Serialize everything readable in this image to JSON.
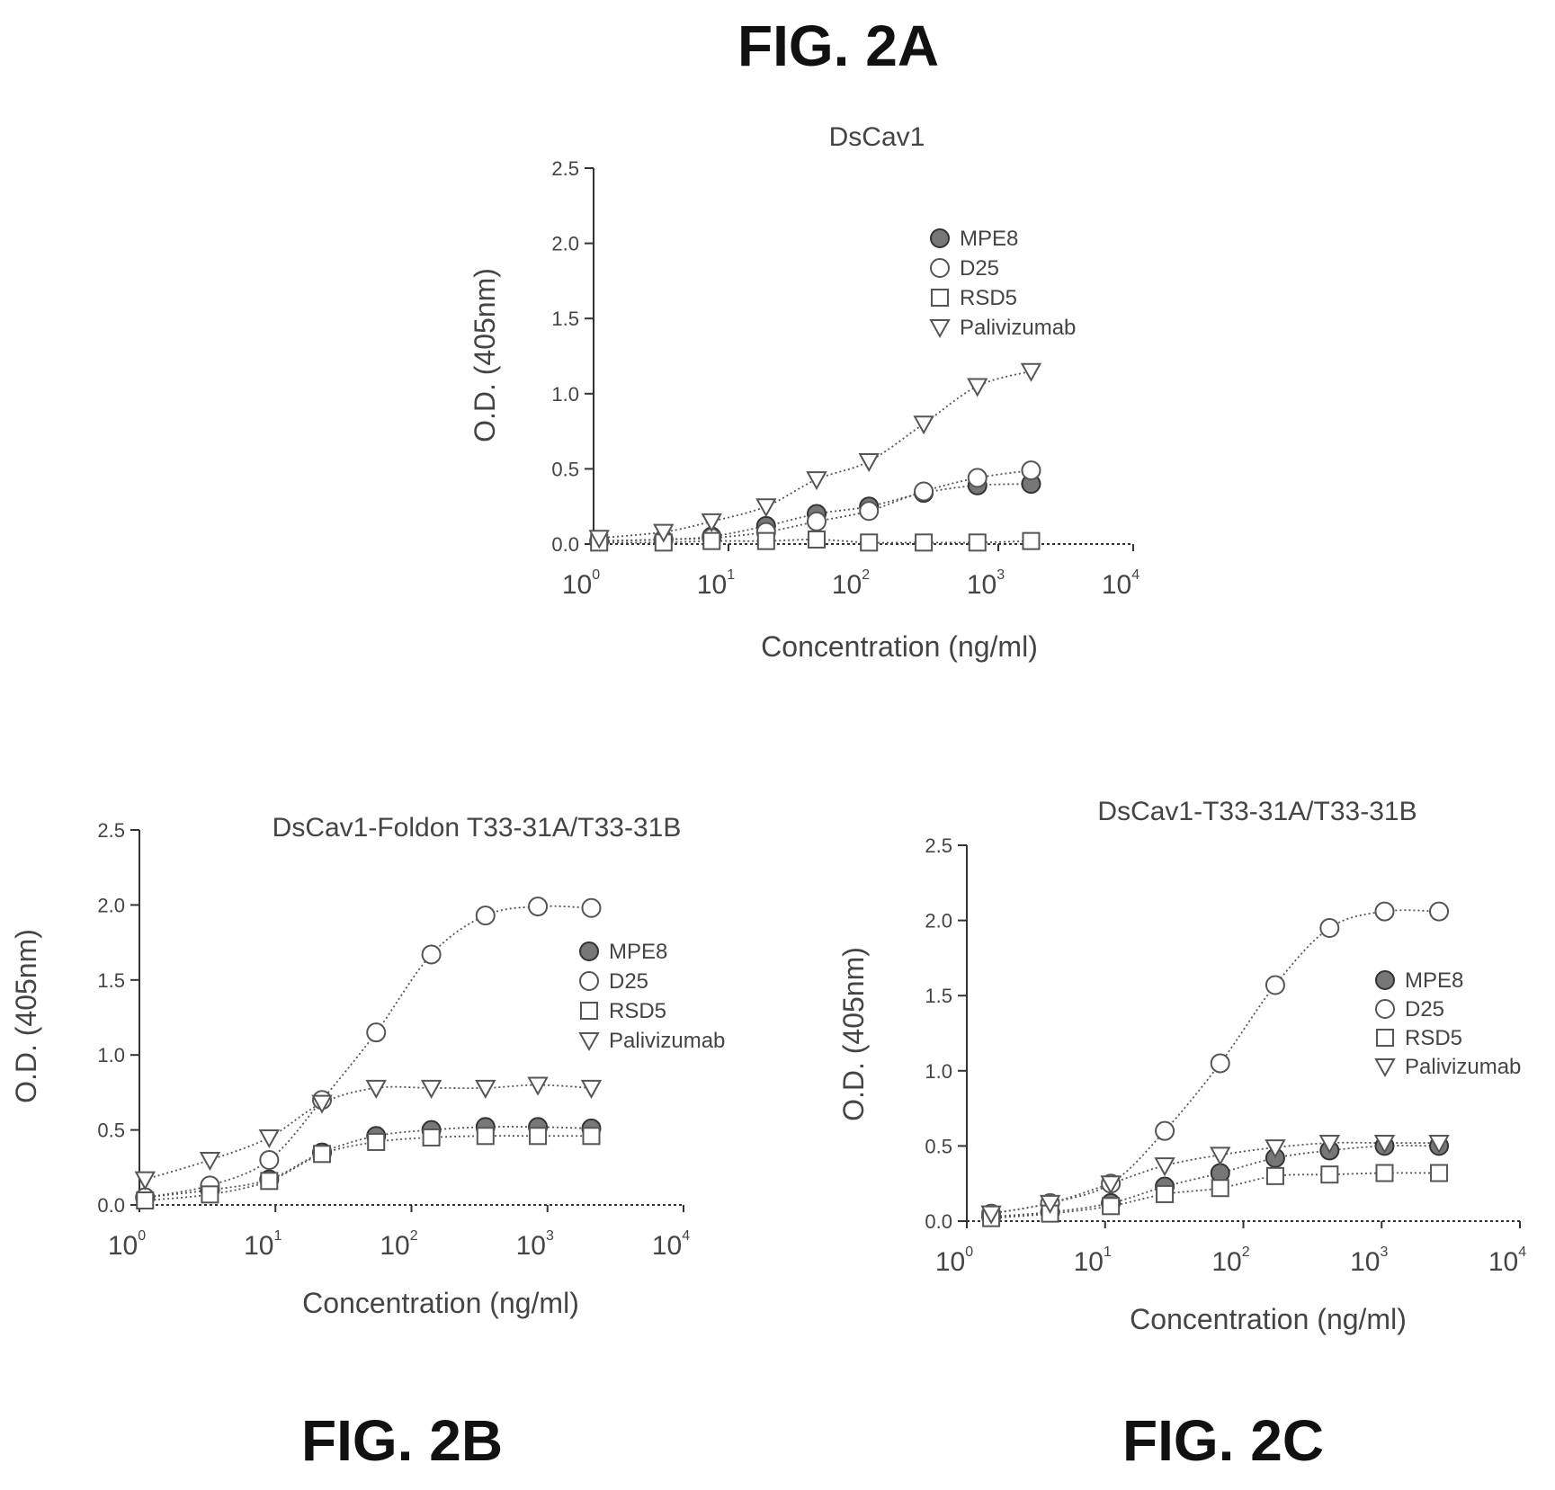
{
  "figure_labels": {
    "a": "FIG. 2A",
    "b": "FIG. 2B",
    "c": "FIG. 2C"
  },
  "chart_data": [
    {
      "type": "line",
      "id": "A",
      "title": "DsCav1",
      "xlabel": "Concentration (ng/ml)",
      "ylabel": "O.D. (405nm)",
      "x_scale": "log",
      "xlim": [
        1,
        10000
      ],
      "ylim": [
        0,
        2.5
      ],
      "yticks": [
        "0.0",
        "0.5",
        "1.0",
        "1.5",
        "2.0",
        "2.5"
      ],
      "xticks": [
        {
          "base": "10",
          "exp": "0"
        },
        {
          "base": "10",
          "exp": "1"
        },
        {
          "base": "10",
          "exp": "2"
        },
        {
          "base": "10",
          "exp": "3"
        },
        {
          "base": "10",
          "exp": "4"
        }
      ],
      "legend_position": "top-right",
      "x": [
        1.1,
        3.3,
        7.5,
        19,
        45,
        110,
        280,
        700,
        1750
      ],
      "series": [
        {
          "name": "MPE8",
          "marker": "filled-circle",
          "values": [
            0.02,
            0.03,
            0.05,
            0.12,
            0.2,
            0.25,
            0.34,
            0.39,
            0.4
          ]
        },
        {
          "name": "D25",
          "marker": "open-circle",
          "values": [
            0.02,
            0.03,
            0.04,
            0.08,
            0.15,
            0.22,
            0.35,
            0.44,
            0.49
          ]
        },
        {
          "name": "RSD5",
          "marker": "open-square",
          "values": [
            0.01,
            0.01,
            0.02,
            0.02,
            0.03,
            0.01,
            0.01,
            0.01,
            0.02
          ]
        },
        {
          "name": "Palivizumab",
          "marker": "open-triangle",
          "values": [
            0.04,
            0.08,
            0.15,
            0.25,
            0.43,
            0.55,
            0.8,
            1.05,
            1.15
          ]
        }
      ]
    },
    {
      "type": "line",
      "id": "B",
      "title": "DsCav1-Foldon T33-31A/T33-31B",
      "xlabel": "Concentration (ng/ml)",
      "ylabel": "O.D. (405nm)",
      "x_scale": "log",
      "xlim": [
        1,
        10000
      ],
      "ylim": [
        0,
        2.5
      ],
      "yticks": [
        "0.0",
        "0.5",
        "1.0",
        "1.5",
        "2.0",
        "2.5"
      ],
      "xticks": [
        {
          "base": "10",
          "exp": "0"
        },
        {
          "base": "10",
          "exp": "1"
        },
        {
          "base": "10",
          "exp": "2"
        },
        {
          "base": "10",
          "exp": "3"
        },
        {
          "base": "10",
          "exp": "4"
        }
      ],
      "legend_position": "right",
      "x": [
        1.1,
        3.3,
        9,
        22,
        55,
        140,
        350,
        850,
        2100
      ],
      "series": [
        {
          "name": "MPE8",
          "marker": "filled-circle",
          "values": [
            0.05,
            0.1,
            0.17,
            0.35,
            0.46,
            0.5,
            0.52,
            0.52,
            0.51
          ]
        },
        {
          "name": "D25",
          "marker": "open-circle",
          "values": [
            0.05,
            0.13,
            0.3,
            0.7,
            1.15,
            1.67,
            1.93,
            1.99,
            1.98
          ]
        },
        {
          "name": "RSD5",
          "marker": "open-square",
          "values": [
            0.03,
            0.07,
            0.16,
            0.34,
            0.42,
            0.45,
            0.46,
            0.46,
            0.46
          ]
        },
        {
          "name": "Palivizumab",
          "marker": "open-triangle",
          "values": [
            0.17,
            0.3,
            0.45,
            0.68,
            0.78,
            0.78,
            0.78,
            0.8,
            0.78
          ]
        }
      ]
    },
    {
      "type": "line",
      "id": "C",
      "title": "DsCav1-T33-31A/T33-31B",
      "xlabel": "Concentration (ng/ml)",
      "ylabel": "O.D. (405nm)",
      "x_scale": "log",
      "xlim": [
        1,
        10000
      ],
      "ylim": [
        0,
        2.5
      ],
      "yticks": [
        "0.0",
        "0.5",
        "1.0",
        "1.5",
        "2.0",
        "2.5"
      ],
      "xticks": [
        {
          "base": "10",
          "exp": "0"
        },
        {
          "base": "10",
          "exp": "1"
        },
        {
          "base": "10",
          "exp": "2"
        },
        {
          "base": "10",
          "exp": "3"
        },
        {
          "base": "10",
          "exp": "4"
        }
      ],
      "legend_position": "right",
      "x": [
        1.5,
        4,
        11,
        27,
        68,
        170,
        420,
        1050,
        2600
      ],
      "series": [
        {
          "name": "MPE8",
          "marker": "filled-circle",
          "values": [
            0.03,
            0.06,
            0.12,
            0.23,
            0.32,
            0.42,
            0.47,
            0.5,
            0.5
          ]
        },
        {
          "name": "D25",
          "marker": "open-circle",
          "values": [
            0.05,
            0.12,
            0.25,
            0.6,
            1.05,
            1.57,
            1.95,
            2.06,
            2.06
          ]
        },
        {
          "name": "RSD5",
          "marker": "open-square",
          "values": [
            0.02,
            0.05,
            0.1,
            0.18,
            0.22,
            0.3,
            0.31,
            0.32,
            0.32
          ]
        },
        {
          "name": "Palivizumab",
          "marker": "open-triangle",
          "values": [
            0.05,
            0.12,
            0.25,
            0.37,
            0.44,
            0.49,
            0.52,
            0.52,
            0.52
          ]
        }
      ]
    }
  ]
}
